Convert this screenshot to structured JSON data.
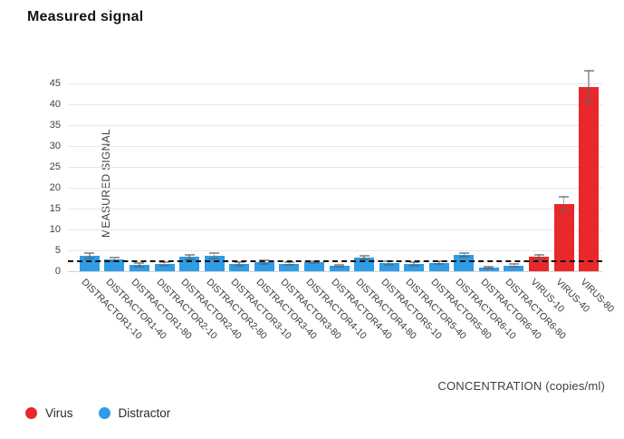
{
  "title": "Measured signal",
  "chart_data": {
    "type": "bar",
    "title": "Measured signal",
    "xlabel": "CONCENTRATION (copies/ml)",
    "ylabel": "MEASURED SIGNAL",
    "ylim": [
      0,
      51
    ],
    "yticks": [
      0,
      5,
      10,
      15,
      20,
      25,
      30,
      35,
      40,
      45
    ],
    "grid": true,
    "legend_position": "bottom-left",
    "background_color": "#ffffff",
    "gridline_color": "#e8e8e8",
    "threshold_line": {
      "value": 2.4,
      "style": "dashed",
      "color": "#111111"
    },
    "categories": [
      "DISTRACTOR1-10",
      "DISTRACTOR1-40",
      "DISTRACTOR1-80",
      "DISTRACTOR2-10",
      "DISTRACTOR2-40",
      "DISTRACTOR2-80",
      "DISTRACTOR3-10",
      "DISTRACTOR3-40",
      "DISTRACTOR3-80",
      "DISTRACTOR4-10",
      "DISTRACTOR4-40",
      "DISTRACTOR4-80",
      "DISTRACTOR5-10",
      "DISTRACTOR5-40",
      "DISTRACTOR5-80",
      "DISTRACTOR6-10",
      "DISTRACTOR6-40",
      "DISTRACTOR6-80",
      "VIRUS-10",
      "VIRUS-40",
      "VIRUS-80"
    ],
    "series": [
      {
        "name": "Virus",
        "color": "#e8282a",
        "categories": [
          "VIRUS-10",
          "VIRUS-40",
          "VIRUS-80"
        ],
        "values": [
          3.4,
          16.1,
          44.3
        ],
        "errors": [
          0.5,
          1.8,
          3.8
        ]
      },
      {
        "name": "Distractor",
        "color": "#2e9ce6",
        "categories": [
          "DISTRACTOR1-10",
          "DISTRACTOR1-40",
          "DISTRACTOR1-80",
          "DISTRACTOR2-10",
          "DISTRACTOR2-40",
          "DISTRACTOR2-80",
          "DISTRACTOR3-10",
          "DISTRACTOR3-40",
          "DISTRACTOR3-80",
          "DISTRACTOR4-10",
          "DISTRACTOR4-40",
          "DISTRACTOR4-80",
          "DISTRACTOR5-10",
          "DISTRACTOR5-40",
          "DISTRACTOR5-80",
          "DISTRACTOR6-10",
          "DISTRACTOR6-40",
          "DISTRACTOR6-80"
        ],
        "values": [
          3.7,
          2.8,
          1.5,
          1.7,
          3.4,
          3.7,
          1.7,
          2.2,
          1.8,
          2.2,
          1.3,
          3.3,
          2.0,
          1.7,
          2.0,
          3.9,
          0.9,
          1.4
        ],
        "errors": [
          0.6,
          0.5,
          0.4,
          0.4,
          0.5,
          0.6,
          0.4,
          0.4,
          0.3,
          0.3,
          0.3,
          0.4,
          0.4,
          0.4,
          0.3,
          0.5,
          0.2,
          0.4
        ]
      }
    ]
  },
  "legend": {
    "items": [
      {
        "label": "Virus",
        "color": "#e8282a"
      },
      {
        "label": "Distractor",
        "color": "#2e9ce6"
      }
    ]
  }
}
